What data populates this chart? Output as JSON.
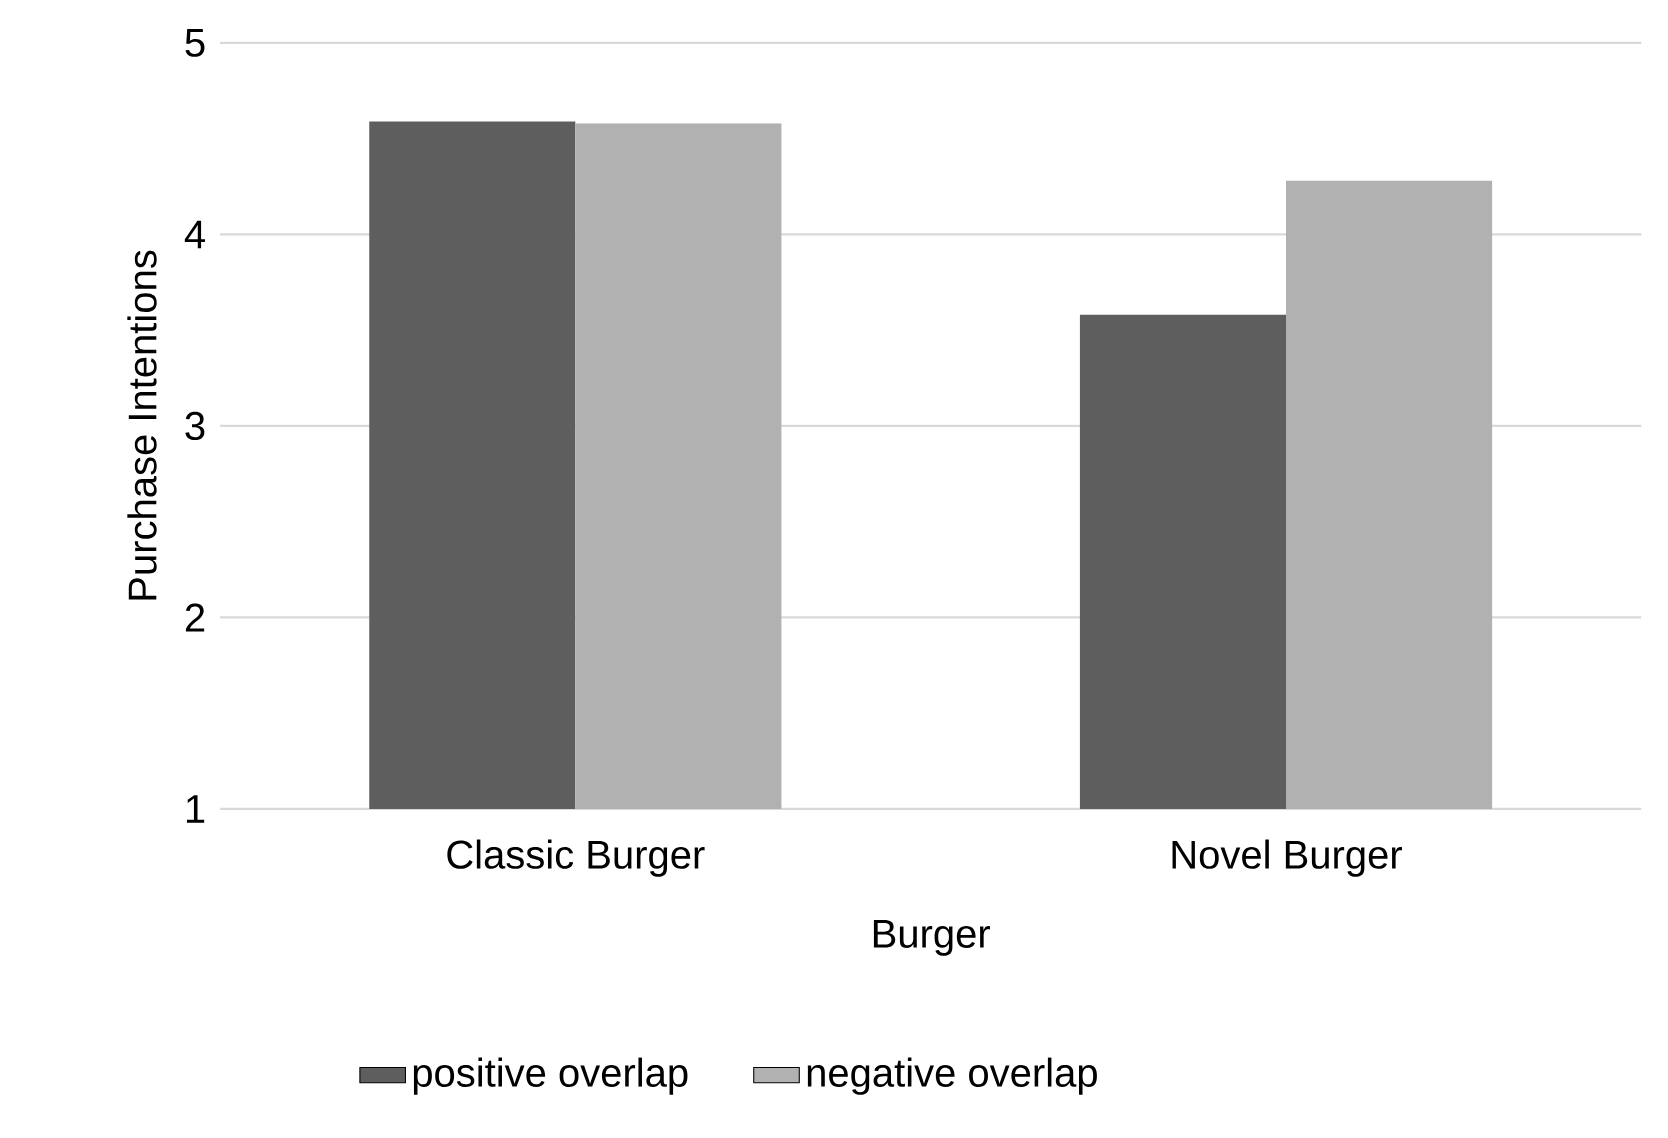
{
  "chart_data": {
    "type": "bar",
    "xlabel": "Burger",
    "ylabel": "Purchase Intentions",
    "categories": [
      "Classic Burger",
      "Novel Burger"
    ],
    "series": [
      {
        "name": "positive overlap",
        "color": "#5e5e5e",
        "values": [
          4.59,
          3.58
        ]
      },
      {
        "name": "negative overlap",
        "color": "#b1b1b1",
        "values": [
          4.58,
          4.28
        ]
      }
    ],
    "ylim": [
      1,
      5
    ],
    "yticks": [
      1,
      2,
      3,
      4,
      5
    ],
    "grid": "y",
    "legend": "bottom"
  }
}
